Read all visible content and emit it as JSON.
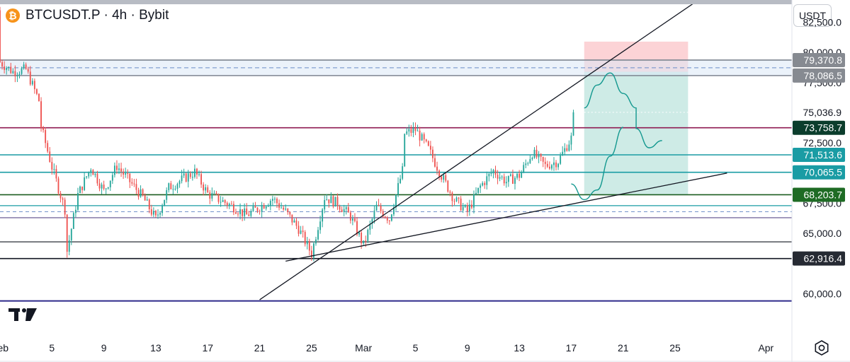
{
  "header": {
    "coin_icon": "bitcoin-icon",
    "title": "BTCUSDT.P · 4h · Bybit"
  },
  "currency_button": "USDT",
  "settings_icon": "gear-icon",
  "chart_data": {
    "type": "candlestick",
    "title": "BTCUSDT.P · 4h · Bybit",
    "x_tick_labels": [
      "Feb",
      "5",
      "9",
      "13",
      "17",
      "21",
      "25",
      "Mar",
      "5",
      "9",
      "13",
      "17",
      "21",
      "25",
      "Apr"
    ],
    "x_tick_dates": [
      "2025-02-01",
      "2025-02-05",
      "2025-02-09",
      "2025-02-13",
      "2025-02-17",
      "2025-02-21",
      "2025-02-25",
      "2025-03-01",
      "2025-03-05",
      "2025-03-09",
      "2025-03-13",
      "2025-03-17",
      "2025-03-21",
      "2025-03-25",
      "2025-04-01"
    ],
    "y_tick_values": [
      82500,
      80000,
      77500,
      75036.9,
      72500,
      67500,
      65000,
      60000
    ],
    "y_tick_labels": [
      "82,500.0",
      "80,000.0",
      "77,500.0",
      "75,036.9",
      "72,500.0",
      "67,500.0",
      "65,000.0",
      "60,000.0"
    ],
    "ylim": [
      56800,
      84000
    ],
    "xlim": [
      "2025-02-01",
      "2025-04-03"
    ],
    "up_color": "#26a69a",
    "down_color": "#ef5350",
    "price_path": [
      [
        "2025-02-01",
        83500
      ],
      [
        "2025-02-01",
        79200
      ],
      [
        "2025-02-02",
        78400
      ],
      [
        "2025-02-03",
        78600
      ],
      [
        "2025-02-04",
        76000
      ],
      [
        "2025-02-04",
        74500
      ],
      [
        "2025-02-05",
        70500
      ],
      [
        "2025-02-06",
        67000
      ],
      [
        "2025-02-06",
        62600
      ],
      [
        "2025-02-07",
        68200
      ],
      [
        "2025-02-08",
        70500
      ],
      [
        "2025-02-09",
        68500
      ],
      [
        "2025-02-10",
        70600
      ],
      [
        "2025-02-12",
        68000
      ],
      [
        "2025-02-13",
        66200
      ],
      [
        "2025-02-14",
        68800
      ],
      [
        "2025-02-16",
        70100
      ],
      [
        "2025-02-17",
        68300
      ],
      [
        "2025-02-19",
        67200
      ],
      [
        "2025-02-20",
        66500
      ],
      [
        "2025-02-22",
        67900
      ],
      [
        "2025-02-23",
        66800
      ],
      [
        "2025-02-24",
        65400
      ],
      [
        "2025-02-25",
        63300
      ],
      [
        "2025-02-26",
        68000
      ],
      [
        "2025-02-27",
        67500
      ],
      [
        "2025-02-28",
        66400
      ],
      [
        "2025-03-01",
        64000
      ],
      [
        "2025-03-02",
        67200
      ],
      [
        "2025-03-03",
        66200
      ],
      [
        "2025-03-04",
        70200
      ],
      [
        "2025-03-04",
        73200
      ],
      [
        "2025-03-05",
        73600
      ],
      [
        "2025-03-06",
        72000
      ],
      [
        "2025-03-07",
        69800
      ],
      [
        "2025-03-08",
        67800
      ],
      [
        "2025-03-09",
        66800
      ],
      [
        "2025-03-10",
        68900
      ],
      [
        "2025-03-11",
        70200
      ],
      [
        "2025-03-12",
        69300
      ],
      [
        "2025-03-13",
        69800
      ],
      [
        "2025-03-14",
        71700
      ],
      [
        "2025-03-15",
        70600
      ],
      [
        "2025-03-16",
        71000
      ],
      [
        "2025-03-17",
        72900
      ],
      [
        "2025-03-17",
        74700
      ]
    ],
    "horizontal_levels": [
      {
        "price": 79370.8,
        "label": "79,370.8",
        "line_color": "#7d8590",
        "label_bg": "#868a91"
      },
      {
        "price": 78086.5,
        "label": "78,086.5",
        "line_color": "#7d8590",
        "label_bg": "#868a91"
      },
      {
        "price": 73758.7,
        "label": "73,758.7",
        "line_color": "#8e1a52",
        "label_bg": "#0b3d2c"
      },
      {
        "price": 71513.6,
        "label": "71,513.6",
        "line_color": "#1a9ca4",
        "label_bg": "#1a9ca4"
      },
      {
        "price": 70065.5,
        "label": "70,065.5",
        "line_color": "#1a9ca4",
        "label_bg": "#1a9ca4"
      },
      {
        "price": 68203.7,
        "label": "68,203.7",
        "line_color": "#1b5e20",
        "label_bg": "#1e6b24"
      },
      {
        "price": 62916.4,
        "label": "62,916.4",
        "line_color": "#131722",
        "label_bg": "#262a33"
      }
    ],
    "other_levels": [
      {
        "price": 67300,
        "color": "#1a9ca4"
      },
      {
        "price": 66300,
        "color": "#5c4d8a"
      },
      {
        "price": 64300,
        "color": "#131722"
      },
      {
        "price": 59400,
        "color": "#2e2a8a"
      }
    ],
    "zone": {
      "top": 79370.8,
      "bottom": 78086.5,
      "color": "#dbe8f5"
    },
    "trendlines": [
      {
        "from": [
          "2025-02-21",
          59500
        ],
        "to": [
          "2025-03-27",
          84500
        ]
      },
      {
        "from": [
          "2025-02-23",
          62700
        ],
        "to": [
          "2025-03-29",
          70000
        ]
      }
    ],
    "position": {
      "start": "2025-03-18",
      "end": "2025-03-26",
      "stop": 80900,
      "entry": 78400,
      "target": 68200,
      "stop_color": "rgba(242,54,69,0.22)",
      "target_color": "rgba(8,153,129,0.20)"
    },
    "projection_path": [
      [
        "2025-03-18",
        75400
      ],
      [
        "2025-03-19",
        77300
      ],
      [
        "2025-03-20",
        78300
      ],
      [
        "2025-03-21",
        76600
      ],
      [
        "2025-03-22",
        75400
      ],
      [
        "2025-03-22",
        73700
      ],
      [
        "2025-03-23",
        72100
      ],
      [
        "2025-03-24",
        72700
      ]
    ],
    "projection_path_2": [
      [
        "2025-03-17",
        69100
      ],
      [
        "2025-03-18",
        67800
      ],
      [
        "2025-03-19",
        68600
      ],
      [
        "2025-03-20",
        71400
      ],
      [
        "2025-03-21",
        73800
      ]
    ]
  }
}
